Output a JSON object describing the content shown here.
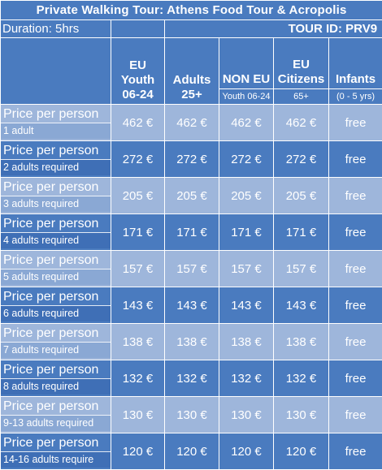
{
  "title": "Private Walking Tour: Athens Food Tour & Acropolis",
  "duration": "Duration: 5hrs",
  "tour_id": "TOUR ID:  PRV9",
  "columns": [
    {
      "line1": "EU",
      "line2": "Youth",
      "line3": "06-24",
      "sub": ""
    },
    {
      "line1": "Adults",
      "line2": "25+",
      "line3": "",
      "sub": ""
    },
    {
      "line1": "NON EU",
      "line2": "",
      "line3": "",
      "sub": "Youth 06-24"
    },
    {
      "line1": "EU",
      "line2": "Citizens",
      "line3": "",
      "sub": "65+"
    },
    {
      "line1": "Infants",
      "line2": "",
      "line3": "",
      "sub": "(0 - 5 yrs)"
    }
  ],
  "rows": [
    {
      "label": "Price per person",
      "sub": "1 adult",
      "prices": [
        "462 €",
        "462 €",
        "462 €",
        "462 €",
        "free"
      ]
    },
    {
      "label": "Price per person",
      "sub": "2 adults required",
      "prices": [
        "272 €",
        "272 €",
        "272 €",
        "272 €",
        "free"
      ]
    },
    {
      "label": "Price per person",
      "sub": "3 adults required",
      "prices": [
        "205 €",
        "205 €",
        "205 €",
        "205 €",
        "free"
      ]
    },
    {
      "label": "Price per person",
      "sub": "4 adults required",
      "prices": [
        "171 €",
        "171 €",
        "171 €",
        "171 €",
        "free"
      ]
    },
    {
      "label": "Price per person",
      "sub": "5 adults required",
      "prices": [
        "157 €",
        "157 €",
        "157 €",
        "157 €",
        "free"
      ]
    },
    {
      "label": "Price per person",
      "sub": "6 adults required",
      "prices": [
        "143 €",
        "143 €",
        "143 €",
        "143 €",
        "free"
      ]
    },
    {
      "label": "Price per person",
      "sub": "7 adults required",
      "prices": [
        "138 €",
        "138 €",
        "138 €",
        "138 €",
        "free"
      ]
    },
    {
      "label": "Price per person",
      "sub": "8 adults required",
      "prices": [
        "132 €",
        "132 €",
        "132 €",
        "132 €",
        "free"
      ]
    },
    {
      "label": "Price per person",
      "sub": "9-13 adults required",
      "prices": [
        "130 €",
        "130 €",
        "130 €",
        "130 €",
        "free"
      ]
    },
    {
      "label": "Price per person",
      "sub": "14-16 adults require",
      "prices": [
        "120 €",
        "120 €",
        "120 €",
        "120 €",
        "free"
      ]
    }
  ],
  "colors": {
    "dark": "#4a7bbf",
    "light": "#9eb6db",
    "text": "#ffffff"
  }
}
